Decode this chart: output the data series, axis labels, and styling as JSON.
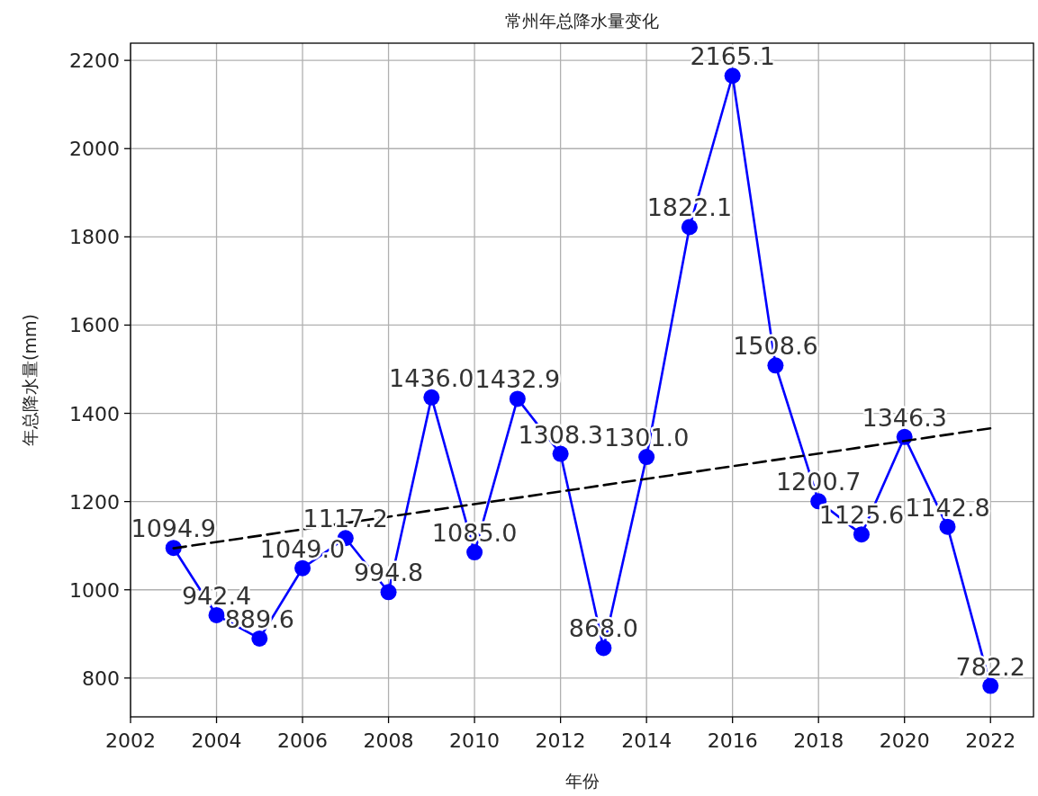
{
  "chart_data": {
    "type": "line",
    "title": "常州年总降水量变化",
    "xlabel": "年份",
    "ylabel": "年总降水量(mm)",
    "xlim": [
      2002,
      2023
    ],
    "xticks": [
      2002,
      2004,
      2006,
      2008,
      2010,
      2012,
      2014,
      2016,
      2018,
      2020,
      2022
    ],
    "ylim": [
      712,
      2239
    ],
    "yticks": [
      800,
      1000,
      1200,
      1400,
      1600,
      1800,
      2000,
      2200
    ],
    "grid": true,
    "marker": "circle",
    "line_style": "solid",
    "series": [
      {
        "color": "#0000ff",
        "x": [
          2003,
          2004,
          2005,
          2006,
          2007,
          2008,
          2009,
          2010,
          2011,
          2012,
          2013,
          2014,
          2015,
          2016,
          2017,
          2018,
          2019,
          2020,
          2021,
          2022
        ],
        "values": [
          1094.9,
          942.4,
          889.6,
          1049.0,
          1117.2,
          994.8,
          1436.0,
          1085.0,
          1432.9,
          1308.3,
          868.0,
          1301.0,
          1822.1,
          2165.1,
          1508.6,
          1200.7,
          1125.6,
          1346.3,
          1142.8,
          782.2
        ],
        "value_labels": [
          "1094.9",
          "942.4",
          "889.6",
          "1049.0",
          "1117.2",
          "994.8",
          "1436.0",
          "1085.0",
          "1432.9",
          "1308.3",
          "868.0",
          "1301.0",
          "1822.1",
          "2165.1",
          "1508.6",
          "1200.7",
          "1125.6",
          "1346.3",
          "1142.8",
          "782.2"
        ]
      },
      {
        "type": "line",
        "color": "#000000",
        "marker": "none",
        "line_style": "dashed",
        "x": [
          2003,
          2022
        ],
        "values": [
          1094,
          1366
        ]
      }
    ]
  }
}
